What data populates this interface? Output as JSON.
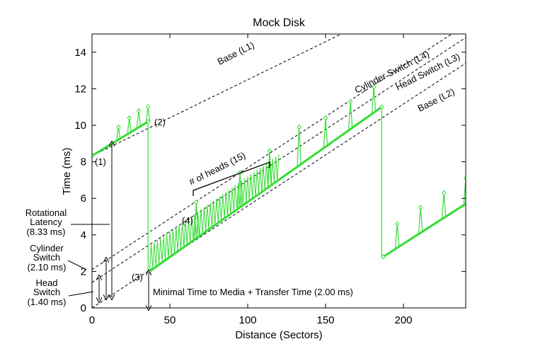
{
  "chart_data": {
    "type": "line",
    "title": "Mock Disk",
    "xlabel": "Distance (Sectors)",
    "ylabel": "Time (ms)",
    "xlim": [
      0,
      240
    ],
    "ylim": [
      0,
      15
    ],
    "xticks": [
      0,
      50,
      100,
      150,
      200
    ],
    "yticks": [
      0,
      2,
      4,
      6,
      8,
      10,
      12,
      14
    ],
    "grid": false,
    "colors": {
      "data": "#33dd33",
      "lines": "#000000"
    },
    "reference_lines": [
      {
        "label": "Base (L1)",
        "x": [
          0,
          240
        ],
        "y": [
          8.33,
          18.33
        ]
      },
      {
        "label": "Cylinder Switch (L4)",
        "x": [
          0,
          240
        ],
        "y": [
          2.1,
          15.5
        ]
      },
      {
        "label": "Head Switch (L3)",
        "x": [
          0,
          240
        ],
        "y": [
          1.4,
          14.8
        ]
      },
      {
        "label": "Base (L2)",
        "x": [
          0,
          240
        ],
        "y": [
          0,
          13.4
        ]
      }
    ],
    "series": [
      {
        "name": "",
        "baseline_segments": [
          {
            "x": [
              0,
              36
            ],
            "y": [
              8.33,
              10.2
            ]
          },
          {
            "x": [
              37,
              186
            ],
            "y": [
              2.0,
              11.0
            ]
          },
          {
            "x": [
              187,
              240
            ],
            "y": [
              2.8,
              5.7
            ]
          }
        ],
        "drops": [
          {
            "x": 36,
            "y": [
              10.2,
              2.0
            ]
          },
          {
            "x": 186,
            "y": [
              11.0,
              2.8
            ]
          }
        ],
        "cylinder_switch_spikes": [
          {
            "x": 17,
            "y": 9.9
          },
          {
            "x": 24,
            "y": 10.4
          },
          {
            "x": 30,
            "y": 10.8
          },
          {
            "x": 36,
            "y": 11.0
          },
          {
            "x": 67,
            "y": 5.8
          },
          {
            "x": 95,
            "y": 7.4
          },
          {
            "x": 114,
            "y": 8.6
          },
          {
            "x": 133,
            "y": 9.9
          },
          {
            "x": 150,
            "y": 10.4
          },
          {
            "x": 166,
            "y": 11.3
          },
          {
            "x": 181,
            "y": 12.1
          },
          {
            "x": 196,
            "y": 4.6
          },
          {
            "x": 211,
            "y": 5.5
          },
          {
            "x": 226,
            "y": 6.3
          },
          {
            "x": 240,
            "y": 7.1
          }
        ],
        "head_switch_ripple": {
          "x_range": [
            37,
            120
          ],
          "amplitude": 1.4
        }
      }
    ],
    "annotations": [
      {
        "text": "(1)",
        "x": 10,
        "y": 8.1
      },
      {
        "text": "(2)",
        "x": 45,
        "y": 10.3
      },
      {
        "text": "(3)",
        "x": 30,
        "y": 1.7
      },
      {
        "text": "(4)",
        "x": 62,
        "y": 4.8
      },
      {
        "text": "# of heads (15)"
      },
      {
        "text": "Minimal Time to Media + Transfer Time (2.00 ms)"
      },
      {
        "text": "Rotational Latency (8.33 ms)"
      },
      {
        "text": "Cylinder Switch (2.10 ms)"
      },
      {
        "text": "Head Switch (1.40 ms)"
      }
    ]
  },
  "labels": {
    "title": "Mock Disk",
    "xlabel": "Distance (Sectors)",
    "ylabel": "Time (ms)",
    "base_l1": "Base (L1)",
    "cyl_l4": "Cylinder Switch (L4)",
    "head_l3": "Head Switch (L3)",
    "base_l2": "Base (L2)",
    "a1": "(1)",
    "a2": "(2)",
    "a3": "(3)",
    "a4": "(4)",
    "heads": "# of heads (15)",
    "min_time": "Minimal Time to Media + Transfer Time (2.00 ms)",
    "rot_1": "Rotational",
    "rot_2": "Latency",
    "rot_3": "(8.33 ms)",
    "cyl_1": "Cylinder",
    "cyl_2": "Switch",
    "cyl_3": "(2.10 ms)",
    "head_1": "Head",
    "head_2": "Switch",
    "head_3": "(1.40 ms)"
  }
}
